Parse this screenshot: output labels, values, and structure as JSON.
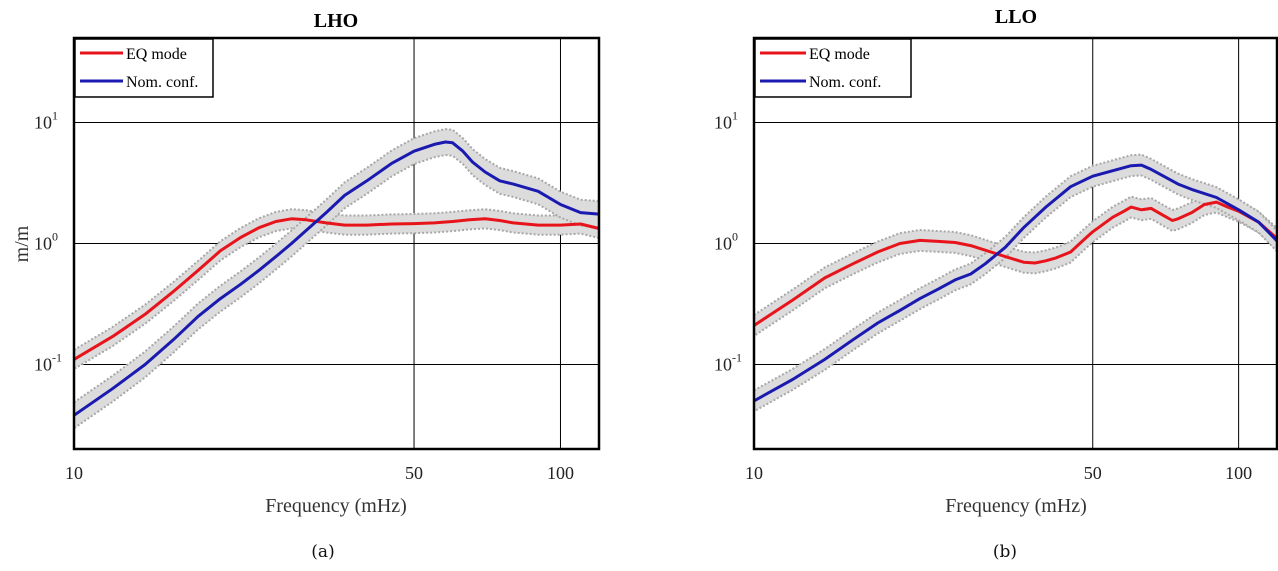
{
  "chart_data": [
    {
      "type": "line",
      "panel_caption": "(a)",
      "title": "LHO",
      "xlabel": "Frequency (mHz)",
      "ylabel": "m/m",
      "xscale": "log",
      "yscale": "log",
      "xlim": [
        10,
        120
      ],
      "ylim": [
        0.02,
        50
      ],
      "xticks": [
        10,
        50,
        100
      ],
      "xtick_labels": [
        "10",
        "50",
        "100"
      ],
      "yticks": [
        0.1,
        1,
        10
      ],
      "ytick_labels": [
        {
          "base": "10",
          "exp": "-1"
        },
        {
          "base": "10",
          "exp": "0"
        },
        {
          "base": "10",
          "exp": "1"
        }
      ],
      "grid": true,
      "legend": {
        "position": "top-left",
        "entries": [
          "EQ mode",
          "Nom. conf."
        ]
      },
      "series": [
        {
          "name": "EQ mode",
          "color": "#e8141b",
          "band_rel": 1.2,
          "x": [
            10,
            12,
            14,
            16,
            18,
            20,
            22,
            24,
            26,
            28,
            30,
            33,
            36,
            40,
            45,
            50,
            55,
            60,
            65,
            70,
            75,
            80,
            90,
            100,
            110,
            120
          ],
          "y": [
            0.11,
            0.17,
            0.26,
            0.4,
            0.6,
            0.87,
            1.12,
            1.35,
            1.52,
            1.6,
            1.57,
            1.48,
            1.42,
            1.42,
            1.45,
            1.46,
            1.48,
            1.52,
            1.57,
            1.6,
            1.55,
            1.48,
            1.42,
            1.42,
            1.45,
            1.33
          ]
        },
        {
          "name": "Nom. conf.",
          "color": "#1a1ab0",
          "band_rel": 1.28,
          "x": [
            10,
            12,
            14,
            16,
            18,
            20,
            22,
            24,
            26,
            28,
            30,
            33,
            36,
            40,
            45,
            50,
            55,
            58,
            60,
            63,
            66,
            70,
            75,
            80,
            90,
            100,
            110,
            120
          ],
          "y": [
            0.038,
            0.063,
            0.1,
            0.16,
            0.25,
            0.35,
            0.46,
            0.6,
            0.78,
            1.0,
            1.28,
            1.8,
            2.5,
            3.3,
            4.6,
            5.8,
            6.6,
            6.9,
            6.8,
            5.8,
            4.7,
            3.9,
            3.3,
            3.1,
            2.7,
            2.1,
            1.8,
            1.75
          ]
        }
      ]
    },
    {
      "type": "line",
      "panel_caption": "(b)",
      "title": "LLO",
      "xlabel": "Frequency (mHz)",
      "ylabel": "",
      "xscale": "log",
      "yscale": "log",
      "xlim": [
        10,
        120
      ],
      "ylim": [
        0.02,
        50
      ],
      "xticks": [
        10,
        50,
        100
      ],
      "xtick_labels": [
        "10",
        "50",
        "100"
      ],
      "yticks": [
        0.1,
        1,
        10
      ],
      "ytick_labels": [
        {
          "base": "10",
          "exp": "-1"
        },
        {
          "base": "10",
          "exp": "0"
        },
        {
          "base": "10",
          "exp": "1"
        }
      ],
      "grid": true,
      "legend": {
        "position": "top-left",
        "entries": [
          "EQ mode",
          "Nom. conf."
        ]
      },
      "series": [
        {
          "name": "EQ mode",
          "color": "#e8141b",
          "band_rel": 1.22,
          "x": [
            10,
            12,
            14,
            16,
            18,
            20,
            22,
            24,
            26,
            28,
            30,
            33,
            36,
            38,
            40,
            42,
            45,
            48,
            50,
            55,
            58,
            60,
            63,
            66,
            70,
            73,
            75,
            80,
            85,
            90,
            95,
            100,
            110,
            120
          ],
          "y": [
            0.21,
            0.34,
            0.52,
            0.68,
            0.85,
            1.0,
            1.06,
            1.04,
            1.02,
            0.96,
            0.88,
            0.78,
            0.7,
            0.69,
            0.72,
            0.76,
            0.85,
            1.08,
            1.25,
            1.65,
            1.85,
            2.0,
            1.9,
            1.95,
            1.7,
            1.55,
            1.6,
            1.8,
            2.1,
            2.2,
            2.0,
            1.85,
            1.5,
            1.1
          ]
        },
        {
          "name": "Nom. conf.",
          "color": "#1a1ab0",
          "band_rel": 1.22,
          "x": [
            10,
            12,
            14,
            16,
            18,
            20,
            22,
            24,
            26,
            28,
            30,
            33,
            36,
            40,
            45,
            50,
            55,
            60,
            63,
            66,
            70,
            75,
            80,
            90,
            100,
            110,
            120
          ],
          "y": [
            0.05,
            0.075,
            0.11,
            0.16,
            0.22,
            0.28,
            0.35,
            0.42,
            0.5,
            0.56,
            0.68,
            0.93,
            1.35,
            2.0,
            2.95,
            3.6,
            4.0,
            4.4,
            4.45,
            4.1,
            3.6,
            3.1,
            2.8,
            2.4,
            1.9,
            1.5,
            1.05
          ]
        }
      ]
    }
  ]
}
